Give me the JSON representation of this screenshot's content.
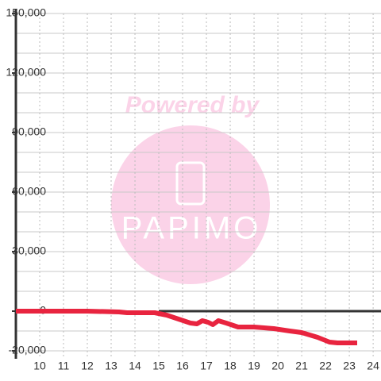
{
  "chart_data": {
    "type": "line",
    "x": [
      9,
      12,
      13.33,
      13.67,
      14.83,
      15.33,
      15.83,
      16.33,
      16.6,
      16.83,
      17.07,
      17.27,
      17.5,
      17.83,
      18.33,
      19,
      19.83,
      20.5,
      21,
      21.67,
      22.17,
      22.5,
      23.33
    ],
    "series": [
      {
        "color": "#e8243f",
        "values": [
          0,
          0,
          -400,
          -800,
          -800,
          -2000,
          -4000,
          -6000,
          -6400,
          -4800,
          -5600,
          -6800,
          -4800,
          -6000,
          -8000,
          -8000,
          -8800,
          -10000,
          -10800,
          -13200,
          -15600,
          -16000,
          -16000
        ]
      }
    ],
    "xlim": [
      9,
      24.33
    ],
    "ylim": [
      -24000,
      150000
    ],
    "xticks": [
      10,
      11,
      12,
      13,
      14,
      15,
      16,
      17,
      18,
      19,
      20,
      21,
      22,
      23,
      24
    ],
    "yticks": [
      {
        "value": -20000,
        "label": "-20,000"
      },
      0,
      {
        "value": 30000,
        "label": "30,000"
      },
      {
        "value": 60000,
        "label": "60,000"
      },
      {
        "value": 90000,
        "label": "90,000"
      },
      {
        "value": 120000,
        "label": "120,000"
      },
      {
        "value": 150000,
        "label": "150,000"
      }
    ],
    "ygrid": [
      -20000,
      -10000,
      10000,
      20000,
      30000,
      40000,
      50000,
      60000,
      70000,
      80000,
      90000,
      100000,
      110000,
      120000,
      130000,
      140000,
      150000
    ],
    "grid": true
  },
  "watermark": {
    "line1": "Powered by",
    "logo": "PAPIMO"
  }
}
